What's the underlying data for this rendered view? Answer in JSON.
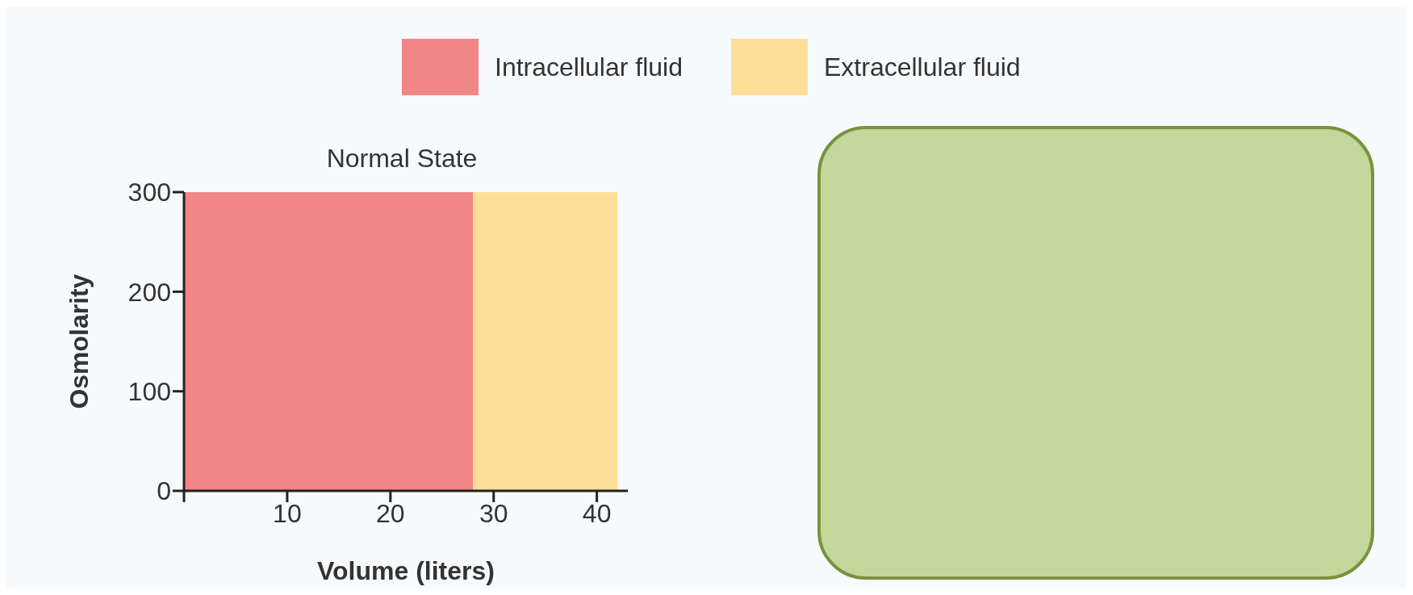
{
  "chart_data": {
    "type": "area",
    "title": "Normal State",
    "xlabel": "Volume (liters)",
    "ylabel": "Osmolarity",
    "series": [
      {
        "name": "Intracellular fluid",
        "color": "#f28585",
        "x": [
          0,
          28
        ],
        "values": [
          300,
          300
        ]
      },
      {
        "name": "Extracellular fluid",
        "color": "#fddf9a",
        "x": [
          28,
          42
        ],
        "values": [
          300,
          300
        ]
      }
    ],
    "xlim": [
      0,
      43
    ],
    "xticks": [
      {
        "value": 0,
        "label": null
      },
      10,
      20,
      30,
      40
    ],
    "ylim": [
      0,
      300
    ],
    "yticks": [
      0,
      100,
      200,
      300
    ],
    "legend": "top",
    "grid": false
  }
}
